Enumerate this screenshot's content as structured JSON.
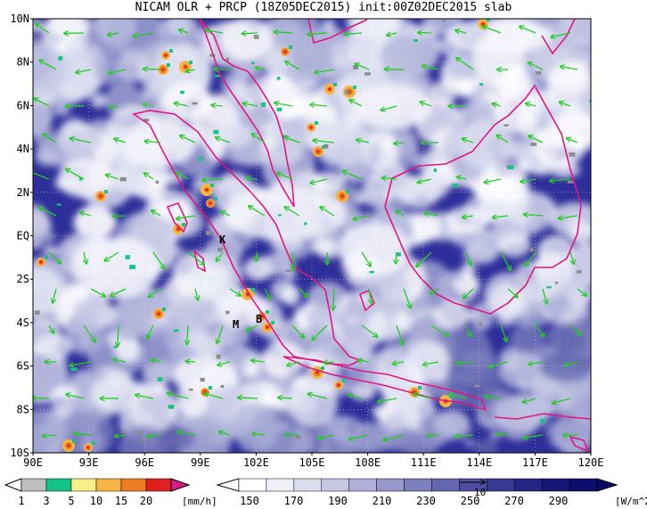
{
  "title": "NICAM OLR + PRCP (18Z05DEC2015) init:00Z02DEC2015 slab",
  "map": {
    "lon_range": [
      90,
      120
    ],
    "lat_range": [
      -10,
      10
    ],
    "lat_ticks": [
      "10N",
      "8N",
      "6N",
      "4N",
      "2N",
      "EQ",
      "2S",
      "4S",
      "6S",
      "8S",
      "10S"
    ],
    "lon_ticks": [
      "90E",
      "93E",
      "96E",
      "99E",
      "102E",
      "105E",
      "108E",
      "111E",
      "114E",
      "117E",
      "120E"
    ],
    "place_markers": [
      "K",
      "M",
      "B"
    ],
    "colors": {
      "ocean_base": "#2e2f9a",
      "cloud": "#e8ebf5",
      "coastline": "#e0177f",
      "wind_arrow": "#22cc22"
    }
  },
  "prcp_scale": {
    "labels": [
      "1",
      "3",
      "5",
      "10",
      "15",
      "20"
    ],
    "unit": "[mm/h]",
    "colors": [
      "#8c8c8c",
      "#bebebe",
      "#16c387",
      "#f7ee8a",
      "#f5b545",
      "#f07a1f",
      "#e02020",
      "#d91a8a"
    ]
  },
  "olr_scale": {
    "labels": [
      "150",
      "170",
      "190",
      "210",
      "230",
      "250",
      "270",
      "290"
    ],
    "unit": "[W/m^2]",
    "ref_vector_label": "10",
    "colors": [
      "#ffffff",
      "#efeff8",
      "#dcdcef",
      "#c6c6e4",
      "#afafd8",
      "#9797cb",
      "#7e7fbd",
      "#6566ae",
      "#4d4e9f",
      "#383991",
      "#242584",
      "#161777",
      "#0d0e6c"
    ]
  }
}
